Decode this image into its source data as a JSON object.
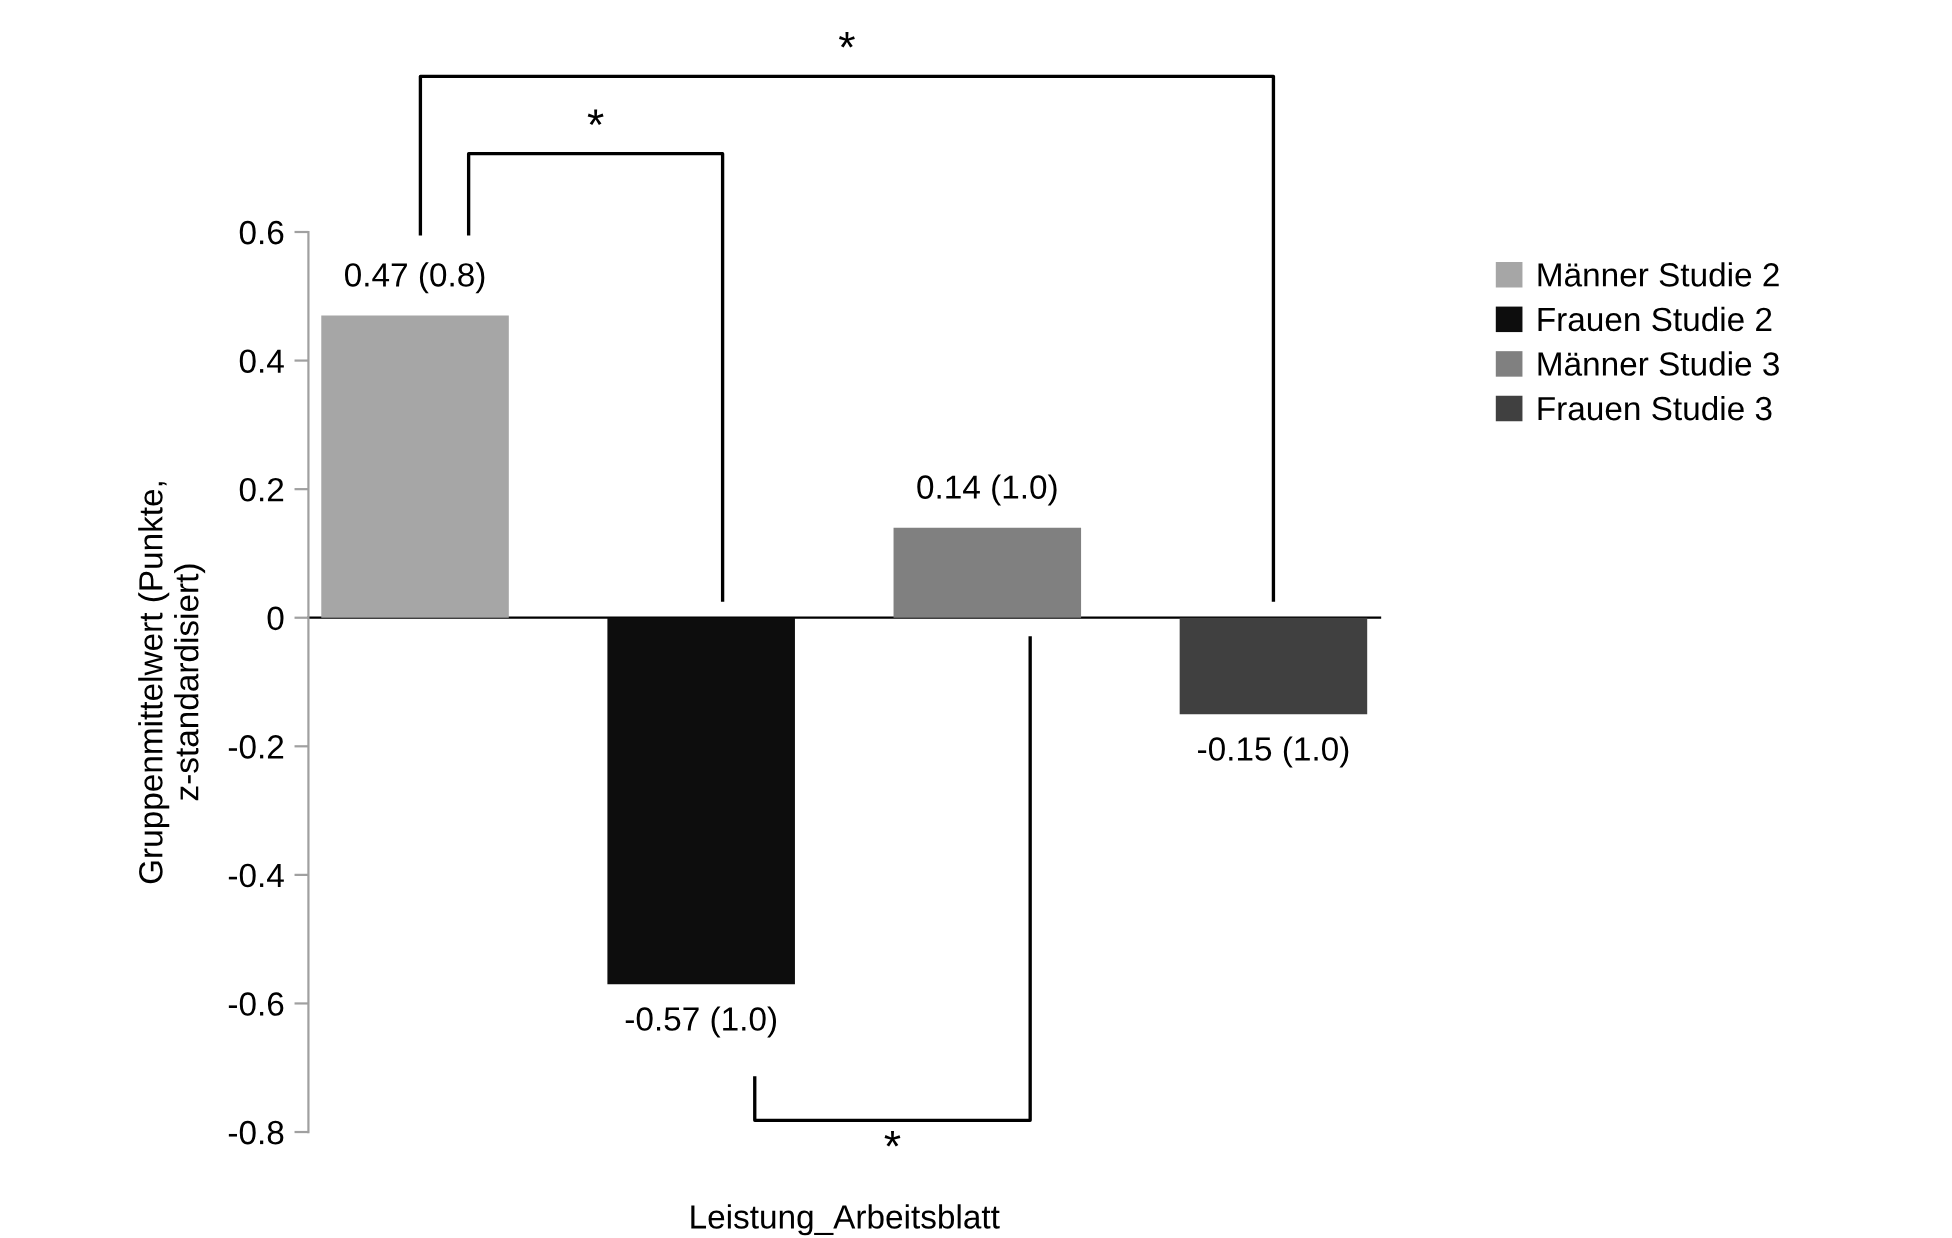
{
  "chart_data": {
    "type": "bar",
    "ylabel": "Gruppenmittelwert (Punkte,\nz-standardisiert)",
    "categories": [
      "Leistung_Arbeitsblatt"
    ],
    "series": [
      {
        "name": "Männer Studie 2",
        "color": "#a6a6a6",
        "values": [
          0.47
        ],
        "value_labels": [
          "0.47 (0.8)"
        ]
      },
      {
        "name": "Frauen Studie 2",
        "color": "#0d0d0d",
        "values": [
          -0.57
        ],
        "value_labels": [
          "-0.57 (1.0)"
        ]
      },
      {
        "name": "Männer Studie 3",
        "color": "#808080",
        "values": [
          0.14
        ],
        "value_labels": [
          "0.14 (1.0)"
        ]
      },
      {
        "name": "Frauen Studie 3",
        "color": "#404040",
        "values": [
          -0.15
        ],
        "value_labels": [
          "-0.15 (1.0)"
        ]
      }
    ],
    "ylim": [
      -0.8,
      0.6
    ],
    "yticks": [
      -0.8,
      -0.6,
      -0.4,
      -0.2,
      0,
      0.2,
      0.4,
      0.6
    ],
    "annotations": [
      "*",
      "*",
      "*"
    ],
    "legend": "right"
  }
}
